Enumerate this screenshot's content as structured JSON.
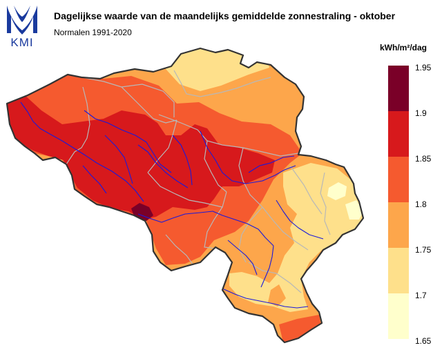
{
  "header": {
    "logo_text": "KMI",
    "title": "Dagelijkse waarde van de maandelijks gemiddelde zonnestraling - oktober",
    "subtitle": "Normalen 1991-2020"
  },
  "legend": {
    "unit": "kWh/m²/dag",
    "ticks": [
      "1.95",
      "1.9",
      "1.85",
      "1.8",
      "1.75",
      "1.7",
      "1.65"
    ],
    "classes": [
      {
        "range": "1.9 - 1.95",
        "color": "#7a0028"
      },
      {
        "range": "1.85 - 1.9",
        "color": "#d7191c"
      },
      {
        "range": "1.8 - 1.85",
        "color": "#f55a2f"
      },
      {
        "range": "1.75 - 1.8",
        "color": "#fda64b"
      },
      {
        "range": "1.7 - 1.75",
        "color": "#fee08b"
      },
      {
        "range": "1.65 - 1.7",
        "color": "#ffffcc"
      }
    ]
  },
  "map": {
    "region": "Belgium",
    "colors": {
      "border": "#333333",
      "provinces": "#b8b8b8",
      "rivers": "#1a1adb",
      "logo": "#1a3a9e"
    }
  }
}
